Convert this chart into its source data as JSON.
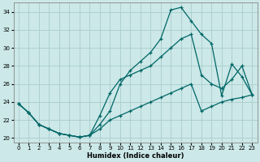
{
  "xlabel": "Humidex (Indice chaleur)",
  "bg_color": "#cce8e8",
  "grid_color": "#aacccc",
  "line_color": "#006666",
  "xlim": [
    -0.5,
    23.5
  ],
  "ylim": [
    19.5,
    35.0
  ],
  "xticks": [
    0,
    1,
    2,
    3,
    4,
    5,
    6,
    7,
    8,
    9,
    10,
    11,
    12,
    13,
    14,
    15,
    16,
    17,
    18,
    19,
    20,
    21,
    22,
    23
  ],
  "yticks": [
    20,
    22,
    24,
    26,
    28,
    30,
    32,
    34
  ],
  "line_max_x": [
    0,
    1,
    2,
    3,
    4,
    5,
    6,
    7,
    8,
    9,
    10,
    11,
    12,
    13,
    14,
    15,
    16,
    17,
    18,
    19,
    20,
    21,
    22,
    23
  ],
  "line_max_y": [
    23.8,
    22.8,
    21.5,
    21.0,
    20.5,
    20.3,
    20.1,
    20.3,
    21.5,
    23.0,
    26.0,
    27.5,
    28.5,
    29.5,
    31.0,
    34.2,
    34.5,
    33.0,
    31.5,
    30.5,
    24.7,
    28.2,
    26.8,
    24.8
  ],
  "line_mid_x": [
    0,
    1,
    2,
    3,
    4,
    5,
    6,
    7,
    8,
    9,
    10,
    11,
    12,
    13,
    14,
    15,
    16,
    17,
    18,
    19,
    20,
    21,
    22,
    23
  ],
  "line_mid_y": [
    23.8,
    22.8,
    21.5,
    21.0,
    20.5,
    20.3,
    20.1,
    20.3,
    22.5,
    25.0,
    26.5,
    27.0,
    27.5,
    28.0,
    29.0,
    30.0,
    31.0,
    31.5,
    27.0,
    26.0,
    25.5,
    26.5,
    28.0,
    24.8
  ],
  "line_min_x": [
    0,
    1,
    2,
    3,
    4,
    5,
    6,
    7,
    8,
    9,
    10,
    11,
    12,
    13,
    14,
    15,
    16,
    17,
    18,
    19,
    20,
    21,
    22,
    23
  ],
  "line_min_y": [
    23.8,
    22.8,
    21.5,
    21.0,
    20.5,
    20.3,
    20.1,
    20.3,
    21.0,
    22.0,
    22.5,
    23.0,
    23.5,
    24.0,
    24.5,
    25.0,
    25.5,
    26.0,
    23.0,
    23.5,
    24.0,
    24.3,
    24.5,
    24.8
  ]
}
